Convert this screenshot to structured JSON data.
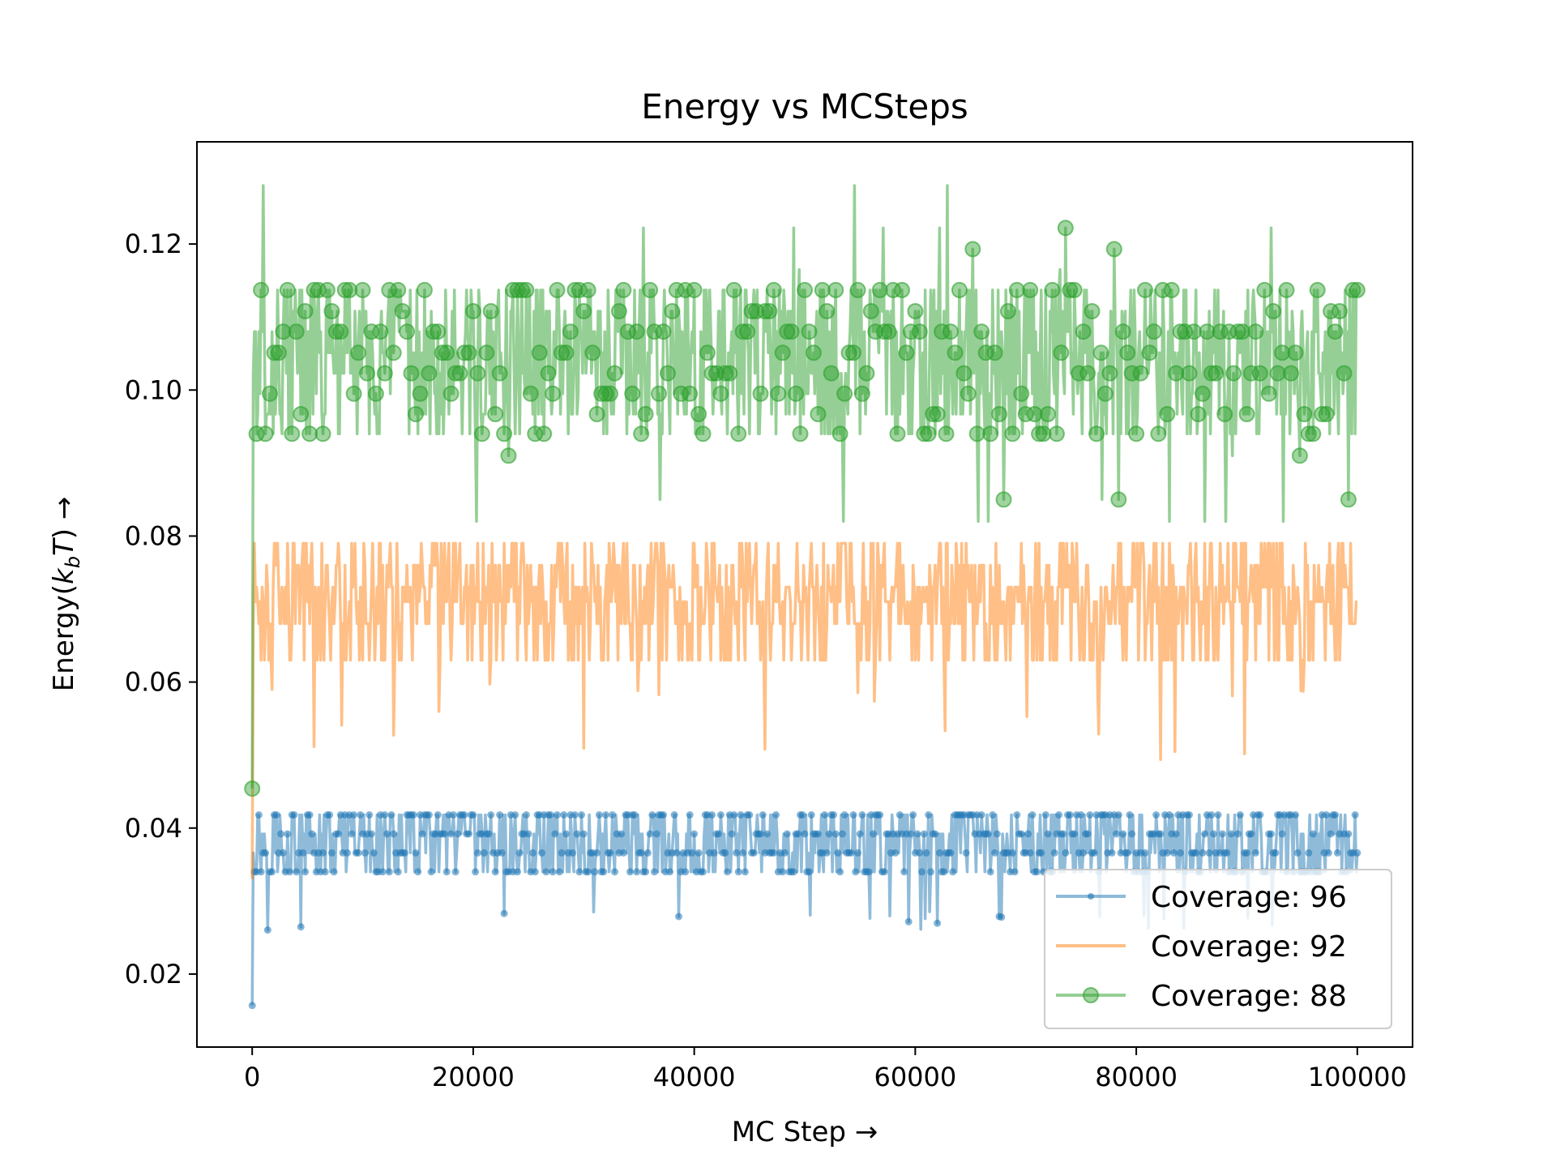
{
  "chart_data": {
    "type": "line",
    "title": "Energy vs MCSteps",
    "xlabel": "MC Step →",
    "ylabel_prefix": "Energy(",
    "ylabel_var_k": "k",
    "ylabel_var_sub": "b",
    "ylabel_var_T": "T",
    "ylabel_suffix": ") →",
    "xlim": [
      -5000,
      105000
    ],
    "ylim": [
      0.01,
      0.134
    ],
    "xticks": [
      0,
      20000,
      40000,
      60000,
      80000,
      100000
    ],
    "xtick_labels": [
      "0",
      "20000",
      "40000",
      "60000",
      "80000",
      "100000"
    ],
    "yticks": [
      0.02,
      0.04,
      0.06,
      0.08,
      0.1,
      0.12
    ],
    "ytick_labels": [
      "0.02",
      "0.04",
      "0.06",
      "0.08",
      "0.10",
      "0.12"
    ],
    "legend_position": "lower-right",
    "n_points": 1001,
    "x_start": 0,
    "x_end": 100000,
    "series": [
      {
        "name": "Coverage: 96",
        "color": "#1f77b4",
        "marker": "small-dot",
        "initial_value": 0.0157,
        "levels": [
          0.0288,
          0.0314,
          0.034,
          0.0366,
          0.0392,
          0.0418
        ],
        "typical_range": [
          0.034,
          0.042
        ],
        "occasional_low": [
          0.026,
          0.0288
        ]
      },
      {
        "name": "Coverage: 92",
        "color": "#ff7f0e",
        "marker": "none",
        "initial_value": 0.033,
        "levels": [
          0.063,
          0.068,
          0.071,
          0.073,
          0.076,
          0.079,
          0.082
        ],
        "typical_range": [
          0.063,
          0.079
        ],
        "occasional_low": [
          0.049,
          0.06
        ]
      },
      {
        "name": "Coverage: 88",
        "color": "#2ca02c",
        "marker": "large-circle",
        "initial_value": 0.0454,
        "levels": [
          0.082,
          0.085,
          0.091,
          0.094,
          0.0967,
          0.0995,
          0.1023,
          0.1051,
          0.108,
          0.1108,
          0.1137,
          0.1165,
          0.1193,
          0.1222
        ],
        "typical_range": [
          0.094,
          0.114
        ],
        "max_value": 0.128
      }
    ]
  }
}
